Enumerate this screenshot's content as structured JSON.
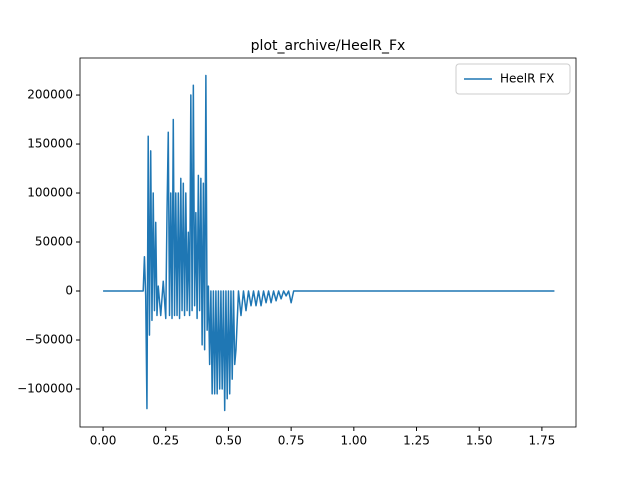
{
  "chart_data": {
    "type": "line",
    "title": "plot_archive/HeelR_Fx",
    "x": [
      0,
      0.16,
      0.165,
      0.17,
      0.175,
      0.18,
      0.185,
      0.19,
      0.195,
      0.2,
      0.205,
      0.21,
      0.215,
      0.22,
      0.23,
      0.24,
      0.25,
      0.255,
      0.26,
      0.265,
      0.27,
      0.275,
      0.28,
      0.285,
      0.29,
      0.295,
      0.3,
      0.305,
      0.31,
      0.315,
      0.32,
      0.325,
      0.33,
      0.335,
      0.34,
      0.345,
      0.35,
      0.355,
      0.36,
      0.365,
      0.37,
      0.375,
      0.38,
      0.385,
      0.39,
      0.395,
      0.4,
      0.405,
      0.41,
      0.415,
      0.42,
      0.425,
      0.43,
      0.435,
      0.44,
      0.445,
      0.45,
      0.455,
      0.46,
      0.465,
      0.47,
      0.475,
      0.48,
      0.485,
      0.49,
      0.495,
      0.5,
      0.505,
      0.51,
      0.515,
      0.52,
      0.525,
      0.53,
      0.54,
      0.55,
      0.56,
      0.57,
      0.58,
      0.59,
      0.6,
      0.61,
      0.62,
      0.63,
      0.64,
      0.65,
      0.66,
      0.67,
      0.68,
      0.69,
      0.7,
      0.71,
      0.72,
      0.73,
      0.74,
      0.75,
      0.76,
      1.8
    ],
    "series": [
      {
        "name": "HeelR FX",
        "color": "#1f77b4",
        "values": [
          0,
          0,
          35000,
          -5000,
          -120000,
          158000,
          -45000,
          143000,
          -30000,
          100000,
          -20000,
          70000,
          -25000,
          5000,
          -25000,
          10000,
          -28000,
          80000,
          162000,
          -25000,
          100000,
          -28000,
          175000,
          -25000,
          100000,
          -25000,
          100000,
          -28000,
          115000,
          -20000,
          110000,
          -25000,
          100000,
          -20000,
          60000,
          -25000,
          200000,
          -20000,
          210000,
          -15000,
          80000,
          -28000,
          118000,
          -20000,
          115000,
          -55000,
          110000,
          -60000,
          220000,
          -40000,
          5000,
          -75000,
          0,
          -105000,
          0,
          -105000,
          0,
          -105000,
          0,
          -100000,
          0,
          -100000,
          0,
          -122000,
          0,
          -110000,
          0,
          -105000,
          0,
          -90000,
          0,
          -75000,
          -60000,
          0,
          -25000,
          0,
          -20000,
          0,
          -15000,
          0,
          -15000,
          0,
          -15000,
          0,
          -12000,
          0,
          -12000,
          0,
          -10000,
          0,
          -8000,
          0,
          -5000,
          0,
          -12000,
          0,
          0
        ]
      }
    ],
    "xlim": [
      -0.092,
      1.886
    ],
    "ylim": [
      -138800,
      237800
    ],
    "xticks": [
      {
        "value": 0,
        "label": "0.00"
      },
      {
        "value": 0.25,
        "label": "0.25"
      },
      {
        "value": 0.5,
        "label": "0.50"
      },
      {
        "value": 0.75,
        "label": "0.75"
      },
      {
        "value": 1,
        "label": "1.00"
      },
      {
        "value": 1.25,
        "label": "1.25"
      },
      {
        "value": 1.5,
        "label": "1.50"
      },
      {
        "value": 1.75,
        "label": "1.75"
      }
    ],
    "yticks": [
      {
        "value": -100000,
        "label": "−100000"
      },
      {
        "value": -50000,
        "label": "−50000"
      },
      0,
      50000,
      100000,
      150000,
      200000
    ],
    "legend": "upper right"
  }
}
